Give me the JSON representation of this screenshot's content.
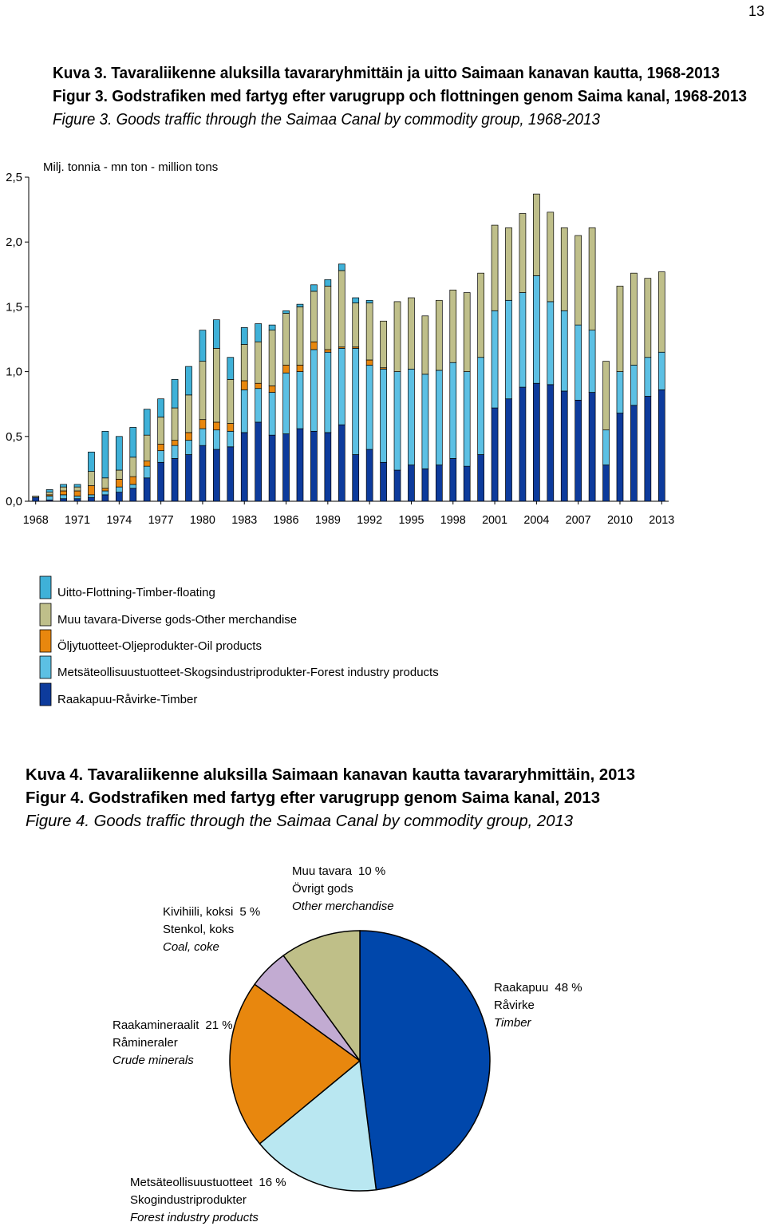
{
  "page_number": "13",
  "chart_data": [
    {
      "type": "bar",
      "title": "Kuva 3. Tavaraliikenne aluksilla tavararyhmittäin ja uitto Saimaan kanavan kautta, 1968-2013",
      "subtitle": "Figur 3. Godstrafiken med fartyg efter varugrupp och flottningen genom Saima kanal, 1968-2013",
      "title_en": "Figure 3. Goods traffic through the Saimaa Canal by commodity group, 1968-2013",
      "y_label": "Milj. tonnia - mn ton - million tons",
      "stacked": true,
      "categories": [
        "1968",
        null,
        null,
        "1971",
        null,
        null,
        "1974",
        null,
        null,
        "1977",
        null,
        null,
        "1980",
        null,
        null,
        "1983",
        null,
        null,
        "1986",
        null,
        null,
        "1989",
        null,
        null,
        "1992",
        null,
        null,
        "1995",
        null,
        null,
        "1998",
        null,
        null,
        "2001",
        null,
        null,
        "2004",
        null,
        null,
        "2007",
        null,
        null,
        "2010",
        null,
        null,
        "2013"
      ],
      "ylim": [
        0,
        2.5
      ],
      "yticks": [
        {
          "value": 0,
          "label": "0,0"
        },
        {
          "value": 0.5,
          "label": "0,5"
        },
        {
          "value": 1,
          "label": "1,0"
        },
        {
          "value": 1.5,
          "label": "1,5"
        },
        {
          "value": 2,
          "label": "2,0"
        },
        {
          "value": 2.5,
          "label": "2,5"
        }
      ],
      "series": [
        {
          "name": "Uitto-Flottning-Timber-floating",
          "color": "#3fb1d8",
          "values": [
            0,
            0.02,
            0.02,
            0.02,
            0.15,
            0.36,
            0.26,
            0.23,
            0.2,
            0.14,
            0.22,
            0.22,
            0.24,
            0.22,
            0.17,
            0.13,
            0.14,
            0.04,
            0.02,
            0.02,
            0.05,
            0.05,
            0.05,
            0.04,
            0.02,
            0,
            0,
            0,
            0,
            0,
            0,
            0,
            0,
            0,
            0,
            0,
            0,
            0,
            0,
            0,
            0,
            0,
            0,
            0,
            0,
            0
          ]
        },
        {
          "name": "Muu tavara-Diverse gods-Other merchandise",
          "color": "#bfbf8a",
          "values": [
            0.01,
            0.02,
            0.03,
            0.03,
            0.11,
            0.08,
            0.07,
            0.15,
            0.2,
            0.21,
            0.25,
            0.29,
            0.45,
            0.57,
            0.34,
            0.28,
            0.32,
            0.43,
            0.4,
            0.45,
            0.39,
            0.49,
            0.59,
            0.34,
            0.44,
            0.36,
            0.54,
            0.55,
            0.45,
            0.54,
            0.56,
            0.61,
            0.65,
            0.66,
            0.56,
            0.61,
            0.63,
            0.69,
            0.64,
            0.69,
            0.79,
            0.53,
            0.66,
            0.71,
            0.61,
            0.62
          ]
        },
        {
          "name": "Öljytuotteet-Oljeprodukter-Oil products",
          "color": "#e8870e",
          "values": [
            0,
            0.01,
            0.03,
            0.04,
            0.07,
            0.02,
            0.06,
            0.06,
            0.04,
            0.05,
            0.04,
            0.06,
            0.07,
            0.06,
            0.06,
            0.07,
            0.04,
            0.05,
            0.06,
            0.05,
            0.06,
            0.02,
            0.01,
            0.01,
            0.04,
            0.01,
            0,
            0,
            0,
            0,
            0,
            0,
            0,
            0,
            0,
            0,
            0,
            0,
            0,
            0,
            0,
            0,
            0,
            0,
            0,
            0
          ]
        },
        {
          "name": "Metsäteollisuustuotteet-Skogsindustriprodukter-Forest industry products",
          "color": "#5cc0e4",
          "values": [
            0,
            0.03,
            0.03,
            0.02,
            0.02,
            0.03,
            0.04,
            0.03,
            0.09,
            0.09,
            0.1,
            0.11,
            0.13,
            0.15,
            0.12,
            0.33,
            0.26,
            0.33,
            0.47,
            0.44,
            0.63,
            0.62,
            0.59,
            0.82,
            0.65,
            0.72,
            0.76,
            0.74,
            0.73,
            0.73,
            0.74,
            0.73,
            0.75,
            0.75,
            0.76,
            0.73,
            0.83,
            0.64,
            0.62,
            0.58,
            0.48,
            0.27,
            0.32,
            0.31,
            0.3,
            0.29
          ]
        },
        {
          "name": "Raakapuu-Råvirke-Timber",
          "color": "#0d3b9c",
          "values": [
            0.03,
            0.01,
            0.02,
            0.02,
            0.03,
            0.05,
            0.07,
            0.1,
            0.18,
            0.3,
            0.33,
            0.36,
            0.43,
            0.4,
            0.42,
            0.53,
            0.61,
            0.51,
            0.52,
            0.56,
            0.54,
            0.53,
            0.59,
            0.36,
            0.4,
            0.3,
            0.24,
            0.28,
            0.25,
            0.28,
            0.33,
            0.27,
            0.36,
            0.72,
            0.79,
            0.88,
            0.91,
            0.9,
            0.85,
            0.78,
            0.84,
            0.28,
            0.68,
            0.74,
            0.81,
            0.86
          ]
        }
      ]
    },
    {
      "type": "pie",
      "title": "Kuva 4. Tavaraliikenne aluksilla Saimaan kanavan kautta tavararyhmittäin, 2013",
      "subtitle": "Figur 4. Godstrafiken med fartyg efter varugrupp genom Saima kanal, 2013",
      "title_en": "Figure 4. Goods traffic through the Saimaa Canal by commodity group, 2013",
      "slices": [
        {
          "name": "Raakapuu",
          "name_sv": "Råvirke",
          "name_en": "Timber",
          "value": 48,
          "value_label": "48 %",
          "color": "#0047ab"
        },
        {
          "name": "Metsäteollisuustuotteet",
          "name_sv": "Skogindustriprodukter",
          "name_en": "Forest industry products",
          "value": 16,
          "value_label": "16 %",
          "color": "#b9e7f1"
        },
        {
          "name": "Raakamineraalit",
          "name_sv": "Råmineraler",
          "name_en": "Crude minerals",
          "value": 21,
          "value_label": "21 %",
          "color": "#e8870e"
        },
        {
          "name": "Kivihiili, koksi",
          "name_sv": "Stenkol, koks",
          "name_en": "Coal, coke",
          "value": 5,
          "value_label": "5 %",
          "color": "#c2abd2"
        },
        {
          "name": "Muu tavara",
          "name_sv": "Övrigt gods",
          "name_en": "Other merchandise",
          "value": 10,
          "value_label": "10 %",
          "color": "#bfbf88"
        }
      ]
    }
  ]
}
